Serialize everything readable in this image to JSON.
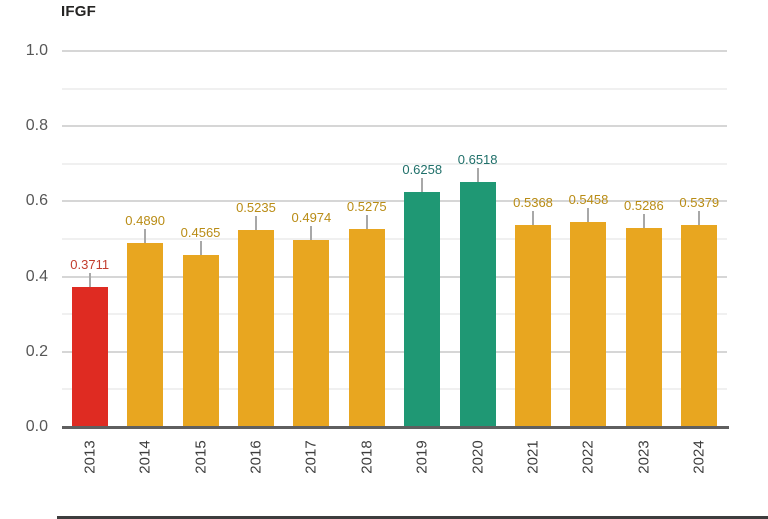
{
  "chart_data": {
    "type": "bar",
    "title": "IFGF",
    "categories": [
      "2013",
      "2014",
      "2015",
      "2016",
      "2017",
      "2018",
      "2019",
      "2020",
      "2021",
      "2022",
      "2023",
      "2024"
    ],
    "values": [
      0.3711,
      0.489,
      0.4565,
      0.5235,
      0.4974,
      0.5275,
      0.6258,
      0.6518,
      0.5368,
      0.5458,
      0.5286,
      0.5379
    ],
    "value_labels": [
      "0.3711",
      "0.4890",
      "0.4565",
      "0.5235",
      "0.4974",
      "0.5275",
      "0.6258",
      "0.6518",
      "0.5368",
      "0.5458",
      "0.5286",
      "0.5379"
    ],
    "bar_roles": [
      "red",
      "gold",
      "gold",
      "gold",
      "gold",
      "gold",
      "teal",
      "teal",
      "gold",
      "gold",
      "gold",
      "gold"
    ],
    "colors": {
      "red": "#df2b22",
      "gold": "#e8a620",
      "teal": "#1f9874"
    },
    "label_colors": {
      "red": "#c23d2e",
      "gold": "#b98c15",
      "teal": "#20706a"
    },
    "xlabel": "",
    "ylabel": "",
    "ylim": [
      0,
      1
    ],
    "y_ticks": [
      "1.0",
      "0.8",
      "0.6",
      "0.4",
      "0.2",
      "0.0"
    ],
    "y_tick_values": [
      1.0,
      0.8,
      0.6,
      0.4,
      0.2,
      0.0
    ],
    "y_minor_gridlines": [
      0.9,
      0.7,
      0.5,
      0.3,
      0.1
    ],
    "grid": "on",
    "legend": "none"
  }
}
